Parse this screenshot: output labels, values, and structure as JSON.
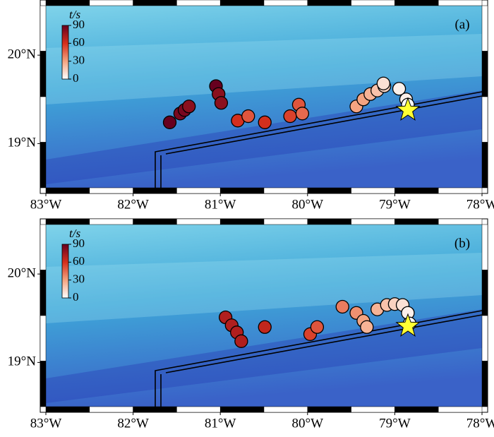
{
  "chart_data": [
    {
      "type": "scatter",
      "panel_label": "(a)",
      "colorbar_label": "t/s",
      "xlim": [
        -83,
        -78
      ],
      "ylim": [
        18.5,
        20.56
      ],
      "xticks": [
        {
          "value": -83,
          "label": "83°W"
        },
        {
          "value": -82,
          "label": "82°W"
        },
        {
          "value": -81,
          "label": "81°W"
        },
        {
          "value": -80,
          "label": "80°W"
        },
        {
          "value": -79,
          "label": "79°W"
        },
        {
          "value": -78,
          "label": "78°W"
        }
      ],
      "yticks": [
        {
          "value": 19,
          "label": "19°N"
        },
        {
          "value": 20,
          "label": "20°N"
        }
      ],
      "clim": [
        0,
        90
      ],
      "cticks": [
        0,
        30,
        60,
        90
      ],
      "x": [
        -81.58,
        -81.46,
        -81.41,
        -81.36,
        -81.05,
        -81.02,
        -80.99,
        -80.8,
        -80.68,
        -80.49,
        -80.2,
        -80.1,
        -80.06,
        -79.44,
        -79.36,
        -79.28,
        -79.2,
        -79.12,
        -79.13,
        -78.95,
        -78.87,
        -78.85
      ],
      "y": [
        19.24,
        19.34,
        19.38,
        19.42,
        19.65,
        19.56,
        19.46,
        19.26,
        19.31,
        19.24,
        19.31,
        19.44,
        19.34,
        19.42,
        19.5,
        19.56,
        19.6,
        19.65,
        19.68,
        19.62,
        19.5,
        19.44
      ],
      "values": [
        90,
        85,
        85,
        80,
        90,
        80,
        80,
        60,
        50,
        60,
        55,
        50,
        45,
        30,
        30,
        25,
        20,
        15,
        10,
        5,
        5,
        0
      ]
    },
    {
      "type": "scatter",
      "panel_label": "(b)",
      "colorbar_label": "t/s",
      "xlim": [
        -83,
        -78
      ],
      "ylim": [
        18.5,
        20.56
      ],
      "xticks": [
        {
          "value": -83,
          "label": "83°W"
        },
        {
          "value": -82,
          "label": "82°W"
        },
        {
          "value": -81,
          "label": "81°W"
        },
        {
          "value": -80,
          "label": "80°W"
        },
        {
          "value": -79,
          "label": "79°W"
        },
        {
          "value": -78,
          "label": "78°W"
        }
      ],
      "yticks": [
        {
          "value": 19,
          "label": "19°N"
        },
        {
          "value": 20,
          "label": "20°N"
        }
      ],
      "clim": [
        0,
        90
      ],
      "cticks": [
        0,
        30,
        60,
        90
      ],
      "x": [
        -80.94,
        -80.87,
        -80.81,
        -80.76,
        -80.49,
        -79.97,
        -79.89,
        -79.6,
        -79.44,
        -79.36,
        -79.32,
        -79.2,
        -79.09,
        -79.0,
        -78.91,
        -78.85,
        -78.83
      ],
      "y": [
        19.51,
        19.42,
        19.34,
        19.24,
        19.4,
        19.32,
        19.4,
        19.63,
        19.56,
        19.47,
        19.4,
        19.6,
        19.65,
        19.66,
        19.65,
        19.56,
        19.44
      ],
      "values": [
        70,
        70,
        70,
        70,
        65,
        55,
        50,
        40,
        35,
        30,
        25,
        25,
        20,
        15,
        10,
        5,
        0
      ]
    }
  ]
}
